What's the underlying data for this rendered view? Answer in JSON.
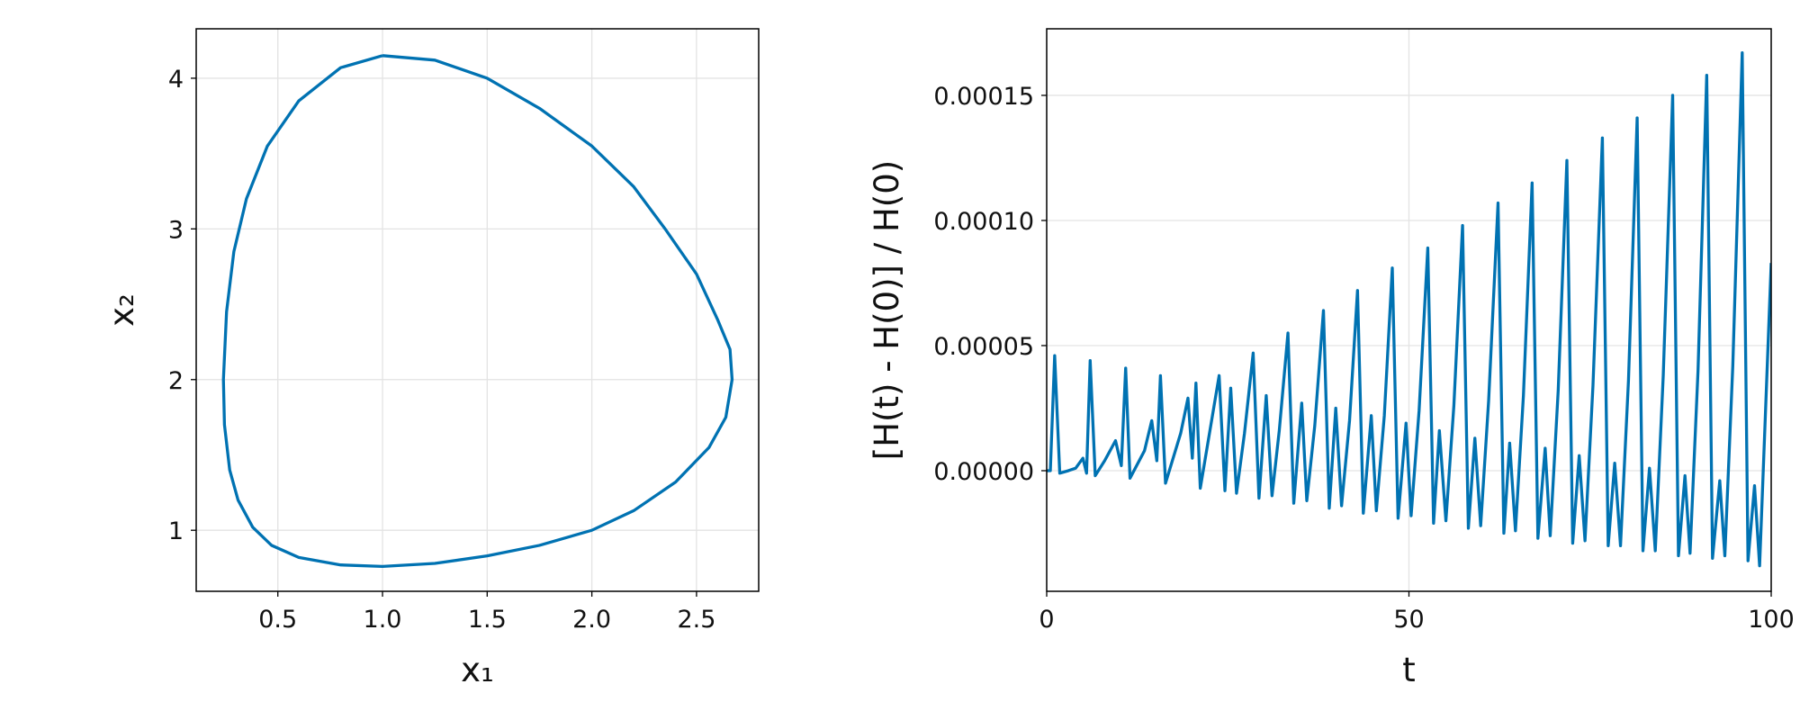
{
  "chart_data": [
    {
      "type": "line",
      "xlabel": "x₁",
      "ylabel": "x₂",
      "color": "#0072b2",
      "grid": true,
      "xlim": [
        0.11,
        2.797
      ],
      "ylim": [
        0.595,
        4.328
      ],
      "xticks": [
        0.5,
        {
          "value": 1.0,
          "label": "1.0"
        },
        1.5,
        {
          "value": 2.0,
          "label": "2.0"
        },
        2.5
      ],
      "yticks": [
        1,
        2,
        3,
        4
      ],
      "x": [
        1.0,
        1.25,
        1.5,
        1.75,
        2.0,
        2.2,
        2.35,
        2.5,
        2.6,
        2.66,
        2.67,
        2.64,
        2.56,
        2.4,
        2.2,
        2.0,
        1.75,
        1.5,
        1.25,
        1.0,
        0.8,
        0.6,
        0.47,
        0.38,
        0.31,
        0.27,
        0.245,
        0.24,
        0.255,
        0.29,
        0.35,
        0.45,
        0.6,
        0.8,
        1.0
      ],
      "values": [
        4.15,
        4.12,
        4.0,
        3.8,
        3.55,
        3.28,
        3.0,
        2.7,
        2.4,
        2.2,
        2.0,
        1.75,
        1.55,
        1.32,
        1.13,
        1.0,
        0.9,
        0.83,
        0.78,
        0.76,
        0.77,
        0.82,
        0.9,
        1.02,
        1.2,
        1.4,
        1.7,
        2.0,
        2.45,
        2.85,
        3.2,
        3.55,
        3.85,
        4.07,
        4.15
      ]
    },
    {
      "type": "line",
      "xlabel": "t",
      "ylabel": "[H(t) - H(0)] / H(0)",
      "color": "#0072b2",
      "grid": true,
      "xlim": [
        0,
        100
      ],
      "ylim": [
        -4.82e-05,
        0.0001766
      ],
      "xticks": [
        0,
        50,
        100
      ],
      "yticks": [
        {
          "value": 0,
          "label": "0.00000"
        },
        {
          "value": 5e-05,
          "label": "0.00005"
        },
        {
          "value": 0.0001,
          "label": "0.00010"
        },
        {
          "value": 0.00015,
          "label": "0.00015"
        }
      ],
      "x": [
        0,
        0.5,
        1.1,
        1.8,
        3,
        4,
        5,
        5.5,
        6,
        6.7,
        8,
        9.5,
        10.3,
        10.9,
        11.5,
        13.5,
        14.5,
        15.2,
        15.7,
        16.4,
        18.5,
        19.5,
        20.1,
        20.6,
        21.2,
        23.8,
        24.6,
        25.4,
        26.2,
        27.3,
        28.5,
        29.3,
        30.3,
        31.1,
        32.1,
        33.3,
        34.1,
        35.2,
        35.9,
        37,
        38.2,
        39,
        39.9,
        40.7,
        41.8,
        42.9,
        43.7,
        44.8,
        45.5,
        46.6,
        47.7,
        48.5,
        49.6,
        50.3,
        51.4,
        52.6,
        53.4,
        54.2,
        55.1,
        56.2,
        57.4,
        58.2,
        59.1,
        59.9,
        61,
        62.3,
        63.1,
        63.9,
        64.7,
        65.8,
        67.0,
        67.8,
        68.8,
        69.5,
        70.6,
        71.8,
        72.6,
        73.5,
        74.3,
        75.4,
        76.7,
        77.5,
        78.4,
        79.2,
        80.3,
        81.5,
        82.3,
        83.2,
        84,
        85.1,
        86.4,
        87.2,
        88.1,
        88.8,
        89.9,
        91.1,
        91.9,
        92.9,
        93.6,
        94.7,
        96.0,
        96.8,
        97.7,
        98.4,
        100
      ],
      "values": [
        0,
        0,
        4.6e-05,
        -1e-06,
        0,
        1e-06,
        5e-06,
        -1e-06,
        4.4e-05,
        -2e-06,
        4e-06,
        1.2e-05,
        2e-06,
        4.1e-05,
        -3e-06,
        8e-06,
        2e-05,
        4e-06,
        3.8e-05,
        -5e-06,
        1.5e-05,
        2.9e-05,
        5e-06,
        3.5e-05,
        -7e-06,
        3.8e-05,
        -8e-06,
        3.3e-05,
        -9e-06,
        1.5e-05,
        4.7e-05,
        -1.1e-05,
        3e-05,
        -1e-05,
        1.6e-05,
        5.5e-05,
        -1.3e-05,
        2.7e-05,
        -1.2e-05,
        1.8e-05,
        6.4e-05,
        -1.5e-05,
        2.5e-05,
        -1.4e-05,
        2e-05,
        7.2e-05,
        -1.7e-05,
        2.2e-05,
        -1.6e-05,
        2.2e-05,
        8.1e-05,
        -1.9e-05,
        1.9e-05,
        -1.8e-05,
        2.4e-05,
        8.9e-05,
        -2.1e-05,
        1.6e-05,
        -2e-05,
        2.6e-05,
        9.8e-05,
        -2.3e-05,
        1.3e-05,
        -2.2e-05,
        2.8e-05,
        0.000107,
        -2.5e-05,
        1.1e-05,
        -2.4e-05,
        3e-05,
        0.000115,
        -2.7e-05,
        9e-06,
        -2.6e-05,
        3.2e-05,
        0.000124,
        -2.9e-05,
        6e-06,
        -2.8e-05,
        3.4e-05,
        0.000133,
        -3e-05,
        3e-06,
        -3e-05,
        3.6e-05,
        0.000141,
        -3.2e-05,
        1e-06,
        -3.2e-05,
        3.8e-05,
        0.00015,
        -3.4e-05,
        -2e-06,
        -3.3e-05,
        4e-05,
        0.000158,
        -3.5e-05,
        -4e-06,
        -3.4e-05,
        4.2e-05,
        0.000167,
        -3.6e-05,
        -6e-06,
        -3.8e-05,
        8.3e-05
      ]
    }
  ]
}
